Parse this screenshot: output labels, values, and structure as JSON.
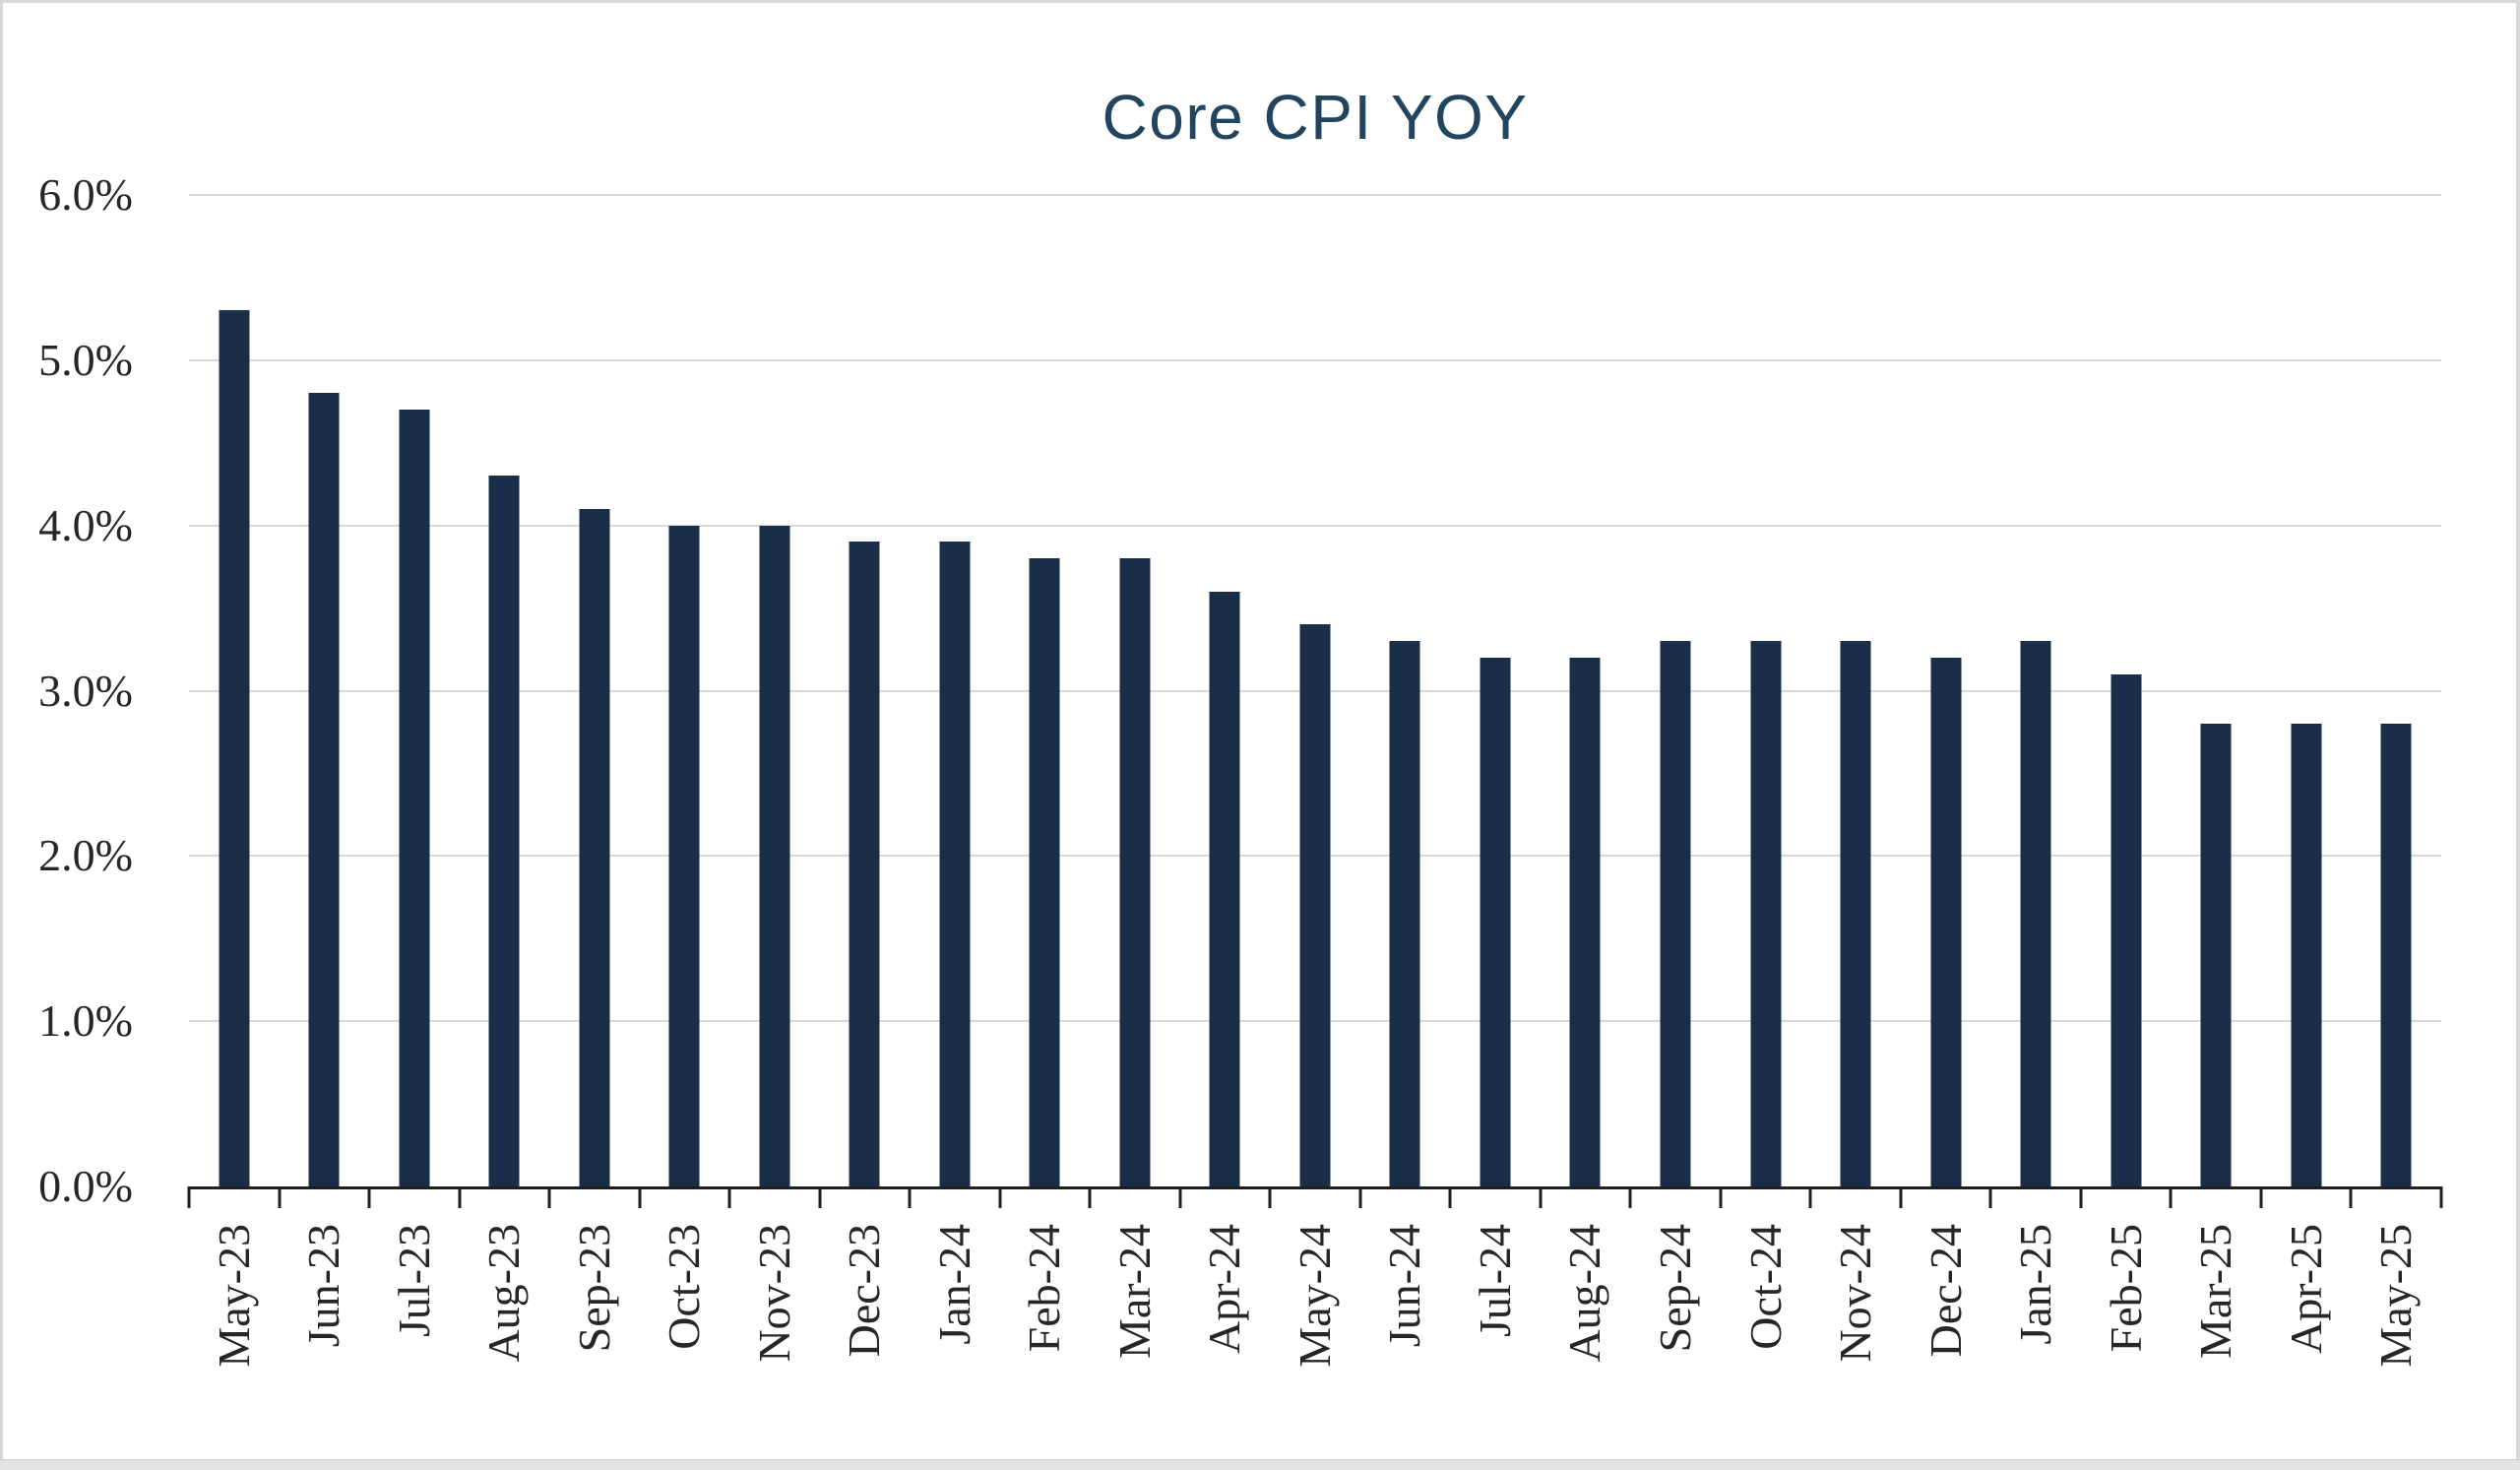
{
  "frame": {
    "background_color": "#ffffff",
    "edge_border_color": "#d8d8d8",
    "bottom_strip_color": "#e3e3e3"
  },
  "chart_data": {
    "type": "bar",
    "title": "Core CPI YOY",
    "categories": [
      "May-23",
      "Jun-23",
      "Jul-23",
      "Aug-23",
      "Sep-23",
      "Oct-23",
      "Nov-23",
      "Dec-23",
      "Jan-24",
      "Feb-24",
      "Mar-24",
      "Apr-24",
      "May-24",
      "Jun-24",
      "Jul-24",
      "Aug-24",
      "Sep-24",
      "Oct-24",
      "Nov-24",
      "Dec-24",
      "Jan-25",
      "Feb-25",
      "Mar-25",
      "Apr-25",
      "May-25"
    ],
    "values": [
      5.3,
      4.8,
      4.7,
      4.3,
      4.1,
      4.0,
      4.0,
      3.9,
      3.9,
      3.8,
      3.8,
      3.6,
      3.4,
      3.3,
      3.2,
      3.2,
      3.3,
      3.3,
      3.3,
      3.2,
      3.3,
      3.1,
      2.8,
      2.8,
      2.8
    ],
    "xlabel": "",
    "ylabel": "",
    "ylim": [
      0,
      6
    ],
    "y_ticks": [
      {
        "value": 0,
        "label": "0.0%"
      },
      {
        "value": 1,
        "label": "1.0%"
      },
      {
        "value": 2,
        "label": "2.0%"
      },
      {
        "value": 3,
        "label": "3.0%"
      },
      {
        "value": 4,
        "label": "4.0%"
      },
      {
        "value": 5,
        "label": "5.0%"
      },
      {
        "value": 6,
        "label": "6.0%"
      }
    ],
    "grid": "horizontal-on",
    "legend": "none",
    "colors": {
      "bar": "#1b2e49",
      "title": "#21455e",
      "gridline": "#d9d9d9",
      "axis_line": "#1f1f1f",
      "tick_label": "#262626"
    }
  }
}
